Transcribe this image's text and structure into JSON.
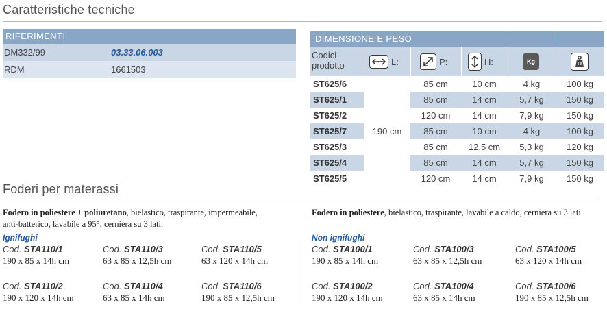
{
  "section1_title": "Caratteristiche tecniche",
  "riferimenti": {
    "header": "RIFERIMENTI",
    "rows": [
      {
        "label": "DM332/99",
        "value": "03.33.06.003"
      },
      {
        "label": "RDM",
        "value": "1661503"
      }
    ]
  },
  "dimensione": {
    "header": "DIMENSIONE E PESO",
    "col_codici_line1": "Codici",
    "col_codici_line2": "prodotto",
    "col_L": "L:",
    "col_P": "P:",
    "col_H": "H:",
    "icon_kg_text": "Kg",
    "L_value": "190 cm",
    "rows": [
      {
        "code": "ST625/6",
        "p": "85 cm",
        "h": "10 cm",
        "kg": "4 kg",
        "max": "100 kg"
      },
      {
        "code": "ST625/1",
        "p": "85 cm",
        "h": "14 cm",
        "kg": "5,7 kg",
        "max": "150 kg"
      },
      {
        "code": "ST625/2",
        "p": "120 cm",
        "h": "14 cm",
        "kg": "7,9 kg",
        "max": "150 kg"
      },
      {
        "code": "ST625/7",
        "p": "85 cm",
        "h": "10 cm",
        "kg": "4 kg",
        "max": "100 kg"
      },
      {
        "code": "ST625/3",
        "p": "85 cm",
        "h": "12,5 cm",
        "kg": "5,3 kg",
        "max": "120 kg"
      },
      {
        "code": "ST625/4",
        "p": "85 cm",
        "h": "14 cm",
        "kg": "5,7 kg",
        "max": "150 kg"
      },
      {
        "code": "ST625/5",
        "p": "120 cm",
        "h": "14 cm",
        "kg": "7,9 kg",
        "max": "150 kg"
      }
    ]
  },
  "section2_title": "Foderi per materassi",
  "foderi_left": {
    "desc_bold": "Fodero in poliestere + poliuretano",
    "desc_rest": ", bielastico, traspirante, impermeabile,",
    "desc_line2": "anti-batterico, lavabile a 95°, cerniera su 3 lati.",
    "category": "Ignifughi",
    "cod_prefix": "Cod.",
    "items": [
      {
        "code": "STA110/1",
        "dims": "190 x 85 x 14h cm"
      },
      {
        "code": "STA110/3",
        "dims": "63 x 85 x 12,5h cm"
      },
      {
        "code": "STA110/5",
        "dims": "63 x 120 x 14h cm"
      },
      {
        "code": "STA110/2",
        "dims": "190 x 120 x 14h cm"
      },
      {
        "code": "STA110/4",
        "dims": "63 x 85 x 14h cm"
      },
      {
        "code": "STA110/6",
        "dims": "190 x 85 x 12,5h cm"
      }
    ]
  },
  "foderi_right": {
    "desc_bold": "Fodero in poliestere",
    "desc_rest": ", bielastico, traspirante, lavabile a caldo, cerniera su 3 lati",
    "category": "Non ignifughi",
    "cod_prefix": "Cod.",
    "items": [
      {
        "code": "STA100/1",
        "dims": "190 x 85 x 14h cm"
      },
      {
        "code": "STA100/3",
        "dims": "63 x 85 x 12,5h cm"
      },
      {
        "code": "STA100/5",
        "dims": "63 x 120 x 14h cm"
      },
      {
        "code": "STA100/2",
        "dims": "190 x 120 x 14h cm"
      },
      {
        "code": "STA100/4",
        "dims": "63 x 85 x 14h cm"
      },
      {
        "code": "STA100/6",
        "dims": "190 x 85 x 12,5h cm"
      }
    ]
  },
  "colors": {
    "header_blue": "#8aa6c7",
    "row_blue": "#c9d6e6",
    "accent": "#245a9b"
  }
}
